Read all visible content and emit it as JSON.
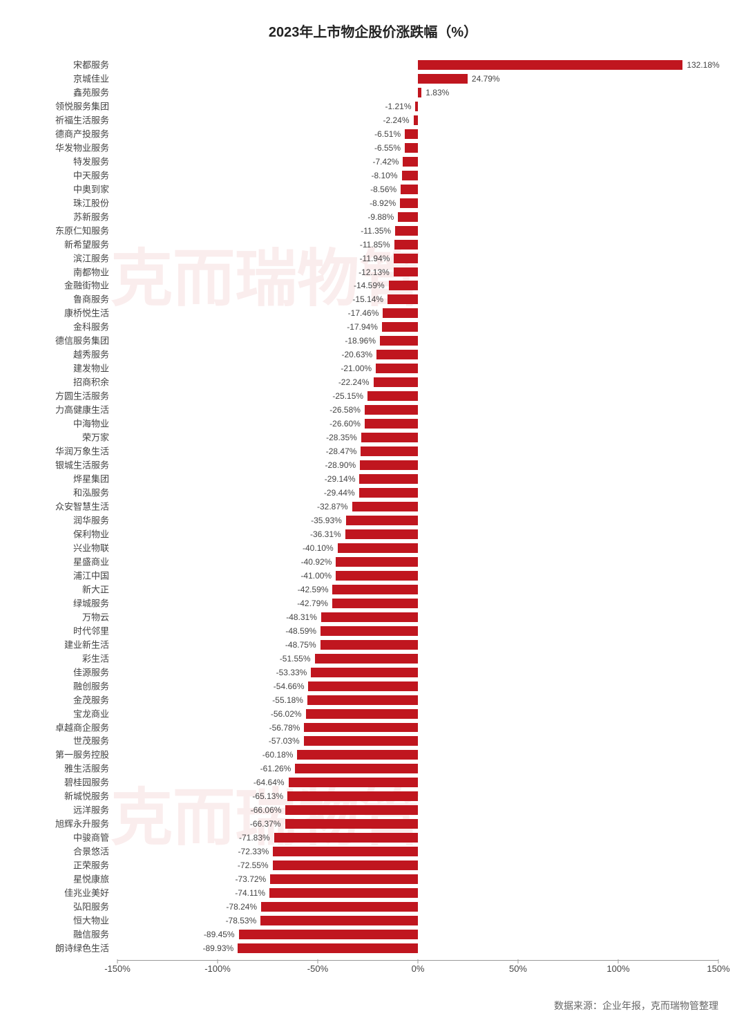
{
  "chart": {
    "type": "bar-horizontal",
    "title": "2023年上市物企股价涨跌幅（%）",
    "title_fontsize": 20,
    "title_color": "#222222",
    "bar_color": "#c0161f",
    "background_color": "#ffffff",
    "axis_color": "#999999",
    "label_color": "#444444",
    "y_label_fontsize": 13,
    "value_label_fontsize": 12,
    "x_tick_fontsize": 13,
    "xlim_min": -150,
    "xlim_max": 150,
    "xtick_step": 50,
    "xticks": [
      "-150%",
      "-100%",
      "-50%",
      "0%",
      "50%",
      "100%",
      "150%"
    ],
    "xtick_values": [
      -150,
      -100,
      -50,
      0,
      50,
      100,
      150
    ],
    "watermark_text": "克而瑞物管",
    "watermark_color": "rgba(192,22,31,0.08)",
    "watermark_fontsize": 90,
    "source_text": "数据来源：企业年报，克而瑞物管整理",
    "source_fontsize": 14,
    "source_color": "#666666",
    "series": [
      {
        "name": "宋都服务",
        "value": 132.18
      },
      {
        "name": "京城佳业",
        "value": 24.79
      },
      {
        "name": "鑫苑服务",
        "value": 1.83
      },
      {
        "name": "领悦服务集团",
        "value": -1.21
      },
      {
        "name": "祈福生活服务",
        "value": -2.24
      },
      {
        "name": "德商产投服务",
        "value": -6.51
      },
      {
        "name": "华发物业服务",
        "value": -6.55
      },
      {
        "name": "特发服务",
        "value": -7.42
      },
      {
        "name": "中天服务",
        "value": -8.1
      },
      {
        "name": "中奥到家",
        "value": -8.56
      },
      {
        "name": "珠江股份",
        "value": -8.92
      },
      {
        "name": "苏新服务",
        "value": -9.88
      },
      {
        "name": "东原仁知服务",
        "value": -11.35
      },
      {
        "name": "新希望服务",
        "value": -11.85
      },
      {
        "name": "滨江服务",
        "value": -11.94
      },
      {
        "name": "南都物业",
        "value": -12.13
      },
      {
        "name": "金融街物业",
        "value": -14.59
      },
      {
        "name": "鲁商服务",
        "value": -15.14
      },
      {
        "name": "康桥悦生活",
        "value": -17.46
      },
      {
        "name": "金科服务",
        "value": -17.94
      },
      {
        "name": "德信服务集团",
        "value": -18.96
      },
      {
        "name": "越秀服务",
        "value": -20.63
      },
      {
        "name": "建发物业",
        "value": -21.0
      },
      {
        "name": "招商积余",
        "value": -22.24
      },
      {
        "name": "方圆生活服务",
        "value": -25.15
      },
      {
        "name": "力高健康生活",
        "value": -26.58
      },
      {
        "name": "中海物业",
        "value": -26.6
      },
      {
        "name": "荣万家",
        "value": -28.35
      },
      {
        "name": "华润万象生活",
        "value": -28.47
      },
      {
        "name": "银城生活服务",
        "value": -28.9
      },
      {
        "name": "烨星集团",
        "value": -29.14
      },
      {
        "name": "和泓服务",
        "value": -29.44
      },
      {
        "name": "众安智慧生活",
        "value": -32.87
      },
      {
        "name": "润华服务",
        "value": -35.93
      },
      {
        "name": "保利物业",
        "value": -36.31
      },
      {
        "name": "兴业物联",
        "value": -40.1
      },
      {
        "name": "星盛商业",
        "value": -40.92
      },
      {
        "name": "浦江中国",
        "value": -41.0
      },
      {
        "name": "新大正",
        "value": -42.59
      },
      {
        "name": "绿城服务",
        "value": -42.79
      },
      {
        "name": "万物云",
        "value": -48.31
      },
      {
        "name": "时代邻里",
        "value": -48.59
      },
      {
        "name": "建业新生活",
        "value": -48.75
      },
      {
        "name": "彩生活",
        "value": -51.55
      },
      {
        "name": "佳源服务",
        "value": -53.33
      },
      {
        "name": "融创服务",
        "value": -54.66
      },
      {
        "name": "金茂服务",
        "value": -55.18
      },
      {
        "name": "宝龙商业",
        "value": -56.02
      },
      {
        "name": "卓越商企服务",
        "value": -56.78
      },
      {
        "name": "世茂服务",
        "value": -57.03
      },
      {
        "name": "第一服务控股",
        "value": -60.18
      },
      {
        "name": "雅生活服务",
        "value": -61.26
      },
      {
        "name": "碧桂园服务",
        "value": -64.64
      },
      {
        "name": "新城悦服务",
        "value": -65.13
      },
      {
        "name": "远洋服务",
        "value": -66.06
      },
      {
        "name": "旭辉永升服务",
        "value": -66.37
      },
      {
        "name": "中骏商管",
        "value": -71.83
      },
      {
        "name": "合景悠活",
        "value": -72.33
      },
      {
        "name": "正荣服务",
        "value": -72.55
      },
      {
        "name": "星悦康旅",
        "value": -73.72
      },
      {
        "name": "佳兆业美好",
        "value": -74.11
      },
      {
        "name": "弘阳服务",
        "value": -78.24
      },
      {
        "name": "恒大物业",
        "value": -78.53
      },
      {
        "name": "融信服务",
        "value": -89.45
      },
      {
        "name": "朗诗绿色生活",
        "value": -89.93
      }
    ]
  }
}
